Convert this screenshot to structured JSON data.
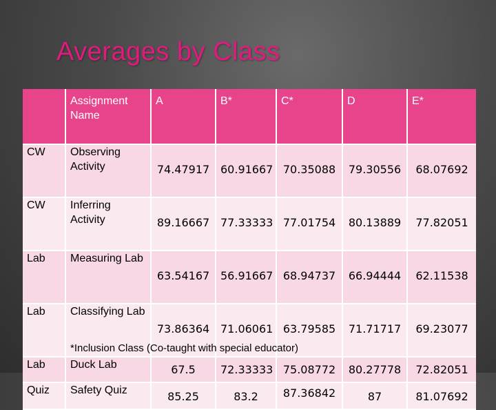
{
  "title": "Averages by Class",
  "table": {
    "headers": [
      "",
      "Assignment Name",
      "A",
      "B*",
      "C*",
      "D",
      "E*"
    ],
    "rows": [
      {
        "type": "CW",
        "name": "Observing Activity",
        "values": [
          "74.47917",
          "60.91667",
          "70.35088",
          "79.30556",
          "68.07692"
        ]
      },
      {
        "type": "CW",
        "name": "Inferring Activity",
        "values": [
          "89.16667",
          "77.33333",
          "77.01754",
          "80.13889",
          "77.82051"
        ]
      },
      {
        "type": "Lab",
        "name": "Measuring Lab",
        "values": [
          "63.54167",
          "56.91667",
          "68.94737",
          "66.94444",
          "62.11538"
        ]
      },
      {
        "type": "Lab",
        "name": "Classifying Lab",
        "values": [
          "73.86364",
          "71.06061",
          "63.79585",
          "71.71717",
          "69.23077"
        ]
      },
      {
        "type": "Lab",
        "name": "Duck Lab",
        "values": [
          "67.5",
          "72.33333",
          "75.08772",
          "80.27778",
          "72.82051"
        ]
      },
      {
        "type": "Quiz",
        "name": "Safety Quiz",
        "values": [
          "85.25",
          "83.2",
          "87.36842",
          "87",
          "81.07692"
        ]
      }
    ]
  },
  "footnote": "*Inclusion Class (Co-taught with special educator)",
  "colors": {
    "title": "#e11a7e",
    "header": "#e8448b",
    "row": "#f9d8e5",
    "row_alt": "#fbe9f0"
  }
}
